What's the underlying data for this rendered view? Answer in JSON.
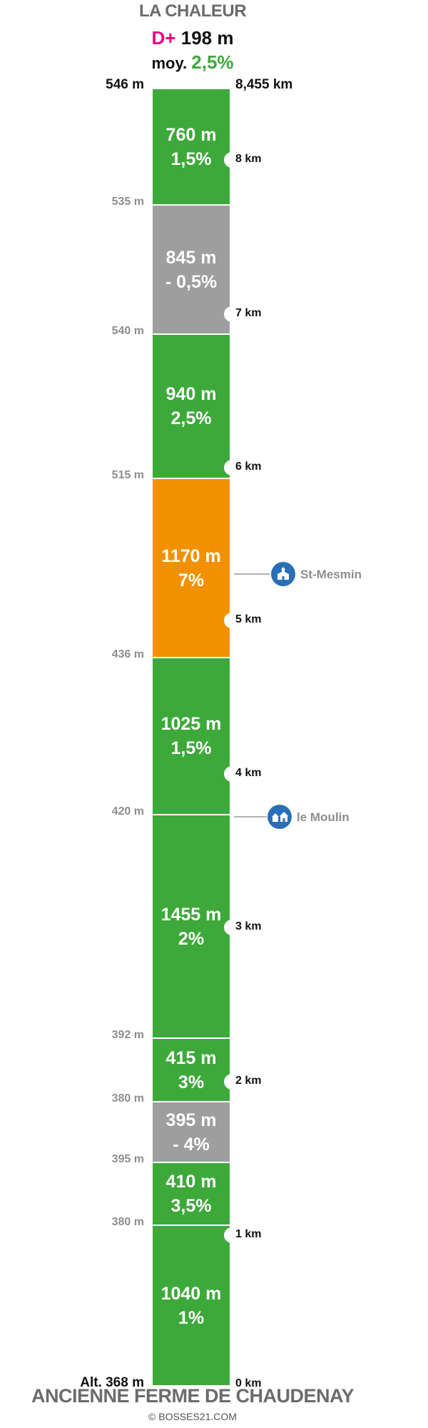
{
  "header": {
    "title": "LA CHALEUR",
    "dplus_label": "D+",
    "dplus_value": "198 m",
    "moy_label": "moy.",
    "moy_value": "2,5%"
  },
  "top": {
    "altitude": "546 m",
    "distance": "8,455 km"
  },
  "segments": [
    {
      "length": "760 m",
      "grade": "1,5%",
      "color": "#3da93a"
    },
    {
      "length": "845 m",
      "grade": "- 0,5%",
      "color": "#9e9e9e"
    },
    {
      "length": "940 m",
      "grade": "2,5%",
      "color": "#3da93a"
    },
    {
      "length": "1170 m",
      "grade": "7%",
      "color": "#f29100"
    },
    {
      "length": "1025 m",
      "grade": "1,5%",
      "color": "#3da93a"
    },
    {
      "length": "1455 m",
      "grade": "2%",
      "color": "#3da93a"
    },
    {
      "length": "415 m",
      "grade": "3%",
      "color": "#3da93a"
    },
    {
      "length": "395 m",
      "grade": "- 4%",
      "color": "#9e9e9e"
    },
    {
      "length": "410 m",
      "grade": "3,5%",
      "color": "#3da93a"
    },
    {
      "length": "1040 m",
      "grade": "1%",
      "color": "#3da93a"
    }
  ],
  "altitudes": [
    "535 m",
    "540 m",
    "515 m",
    "436 m",
    "420 m",
    "392 m",
    "380 m",
    "395 m",
    "380 m"
  ],
  "km_markers": [
    "8 km",
    "7 km",
    "6 km",
    "5 km",
    "4 km",
    "3 km",
    "2 km",
    "1 km",
    "0 km"
  ],
  "pois": [
    {
      "name": "St-Mesmin",
      "icon": "church-icon"
    },
    {
      "name": "le Moulin",
      "icon": "houses-icon"
    }
  ],
  "bottom": {
    "altitude": "Alt. 368 m"
  },
  "footer": {
    "start_name": "ANCIENNE FERME DE CHAUDENAY",
    "copyright": "© BOSSES21.COM"
  }
}
